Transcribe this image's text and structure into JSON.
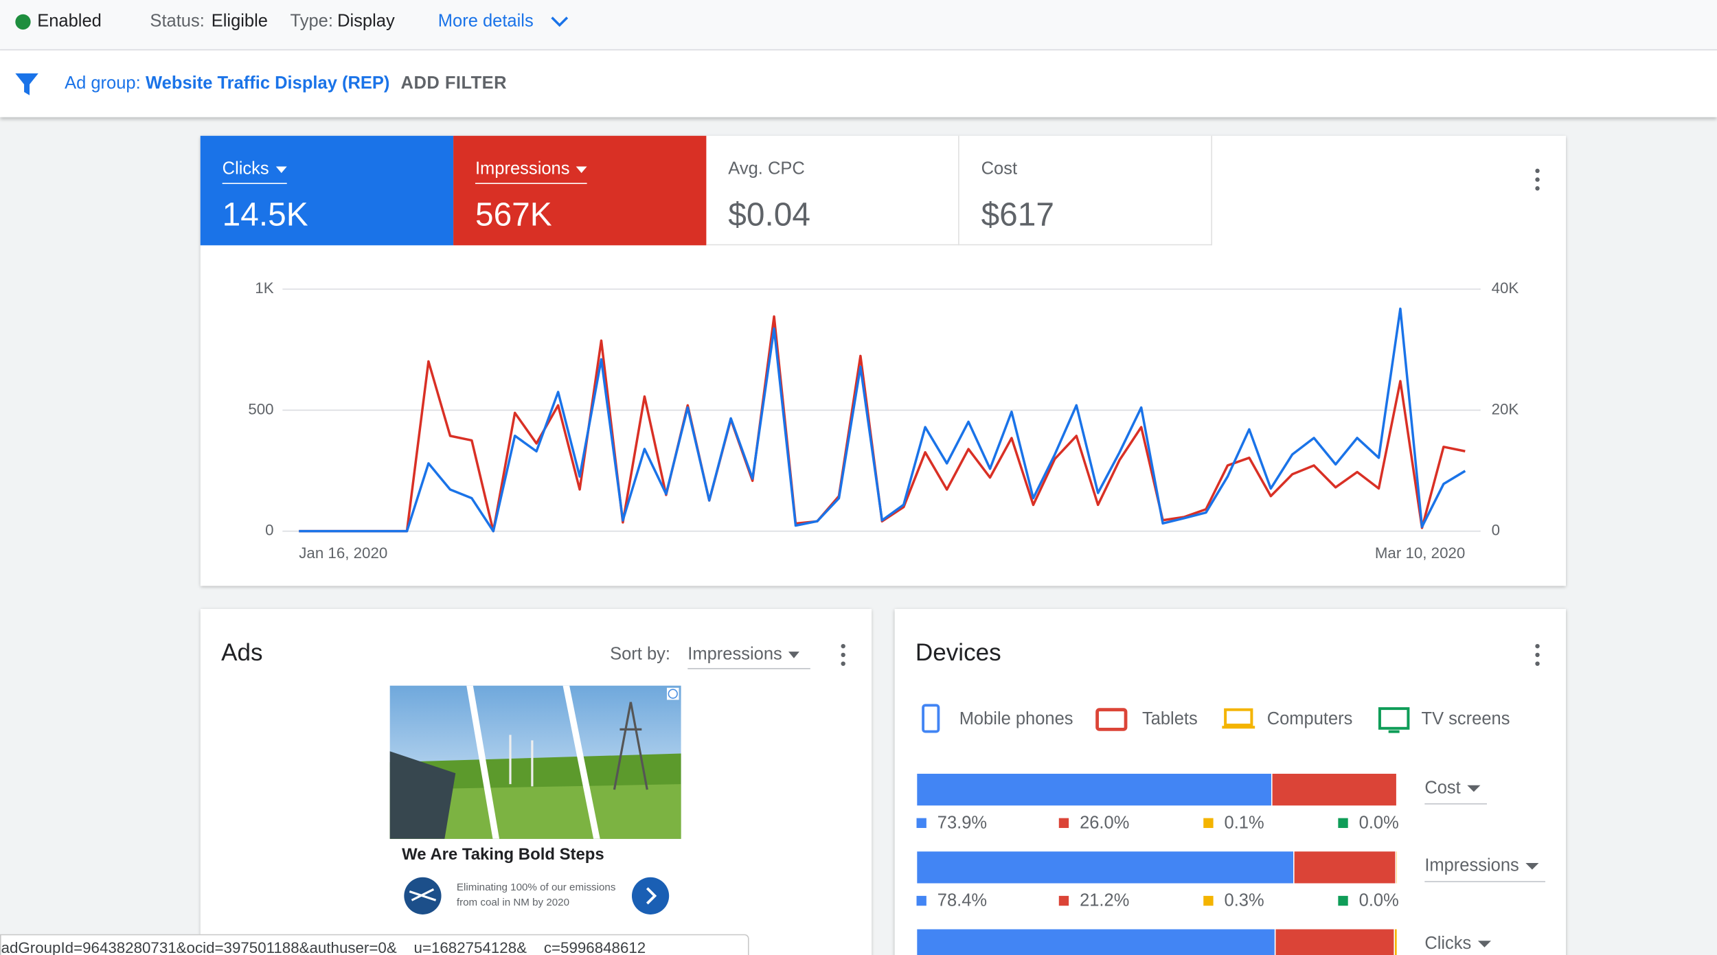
{
  "status_bar": {
    "status": "Enabled",
    "status_label": "Status:",
    "status_value": "Eligible",
    "type_label": "Type:",
    "type_value": "Display",
    "more": "More details"
  },
  "filter_bar": {
    "label": "Ad group:",
    "value": "Website Traffic Display (REP)",
    "add": "ADD FILTER"
  },
  "metrics": [
    {
      "name": "Clicks",
      "value": "14.5K",
      "color": "#1a73e8"
    },
    {
      "name": "Impressions",
      "value": "567K",
      "color": "#d93025"
    },
    {
      "name": "Avg. CPC",
      "value": "$0.04"
    },
    {
      "name": "Cost",
      "value": "$617"
    }
  ],
  "chart_data": {
    "type": "line",
    "categories": [
      "Jan 16, 2020",
      null,
      null,
      null,
      null,
      null,
      null,
      null,
      null,
      null,
      null,
      null,
      null,
      null,
      null,
      null,
      null,
      null,
      null,
      null,
      null,
      null,
      null,
      null,
      null,
      null,
      null,
      null,
      null,
      null,
      null,
      null,
      null,
      null,
      null,
      null,
      null,
      null,
      null,
      null,
      null,
      null,
      null,
      null,
      null,
      null,
      null,
      null,
      null,
      null,
      null,
      null,
      null,
      null,
      "Mar 10, 2020"
    ],
    "series": [
      {
        "name": "Clicks",
        "color": "#1a73e8",
        "values": [
          0,
          0,
          0,
          0,
          0,
          0,
          280,
          172,
          136,
          0,
          394,
          330,
          575,
          226,
          710,
          45,
          340,
          154,
          511,
          127,
          466,
          217,
          837,
          23,
          41,
          136,
          679,
          45,
          109,
          430,
          280,
          452,
          258,
          493,
          136,
          317,
          520,
          158,
          326,
          511,
          32,
          54,
          77,
          226,
          421,
          176,
          317,
          385,
          276,
          385,
          303,
          919,
          18,
          195,
          249
        ]
      },
      {
        "name": "Impressions",
        "color": "#d93025",
        "axis": "y2",
        "values": [
          0,
          0,
          0,
          0,
          0,
          0,
          28050,
          15750,
          15000,
          0,
          19550,
          14500,
          20800,
          6900,
          31500,
          1450,
          22260,
          6000,
          20800,
          5070,
          18460,
          8330,
          35480,
          1270,
          1630,
          5790,
          28960,
          1630,
          3980,
          13030,
          6880,
          13570,
          8870,
          15380,
          4340,
          11950,
          15750,
          4340,
          11760,
          17190,
          1810,
          2350,
          3620,
          10860,
          12130,
          5790,
          9410,
          10860,
          7240,
          9770,
          7060,
          24800,
          540,
          13940,
          13210
        ]
      }
    ],
    "ylim": [
      0,
      1000
    ],
    "yticks": [
      0,
      500,
      {
        "value": 1000,
        "label": "1K"
      }
    ],
    "y2lim": [
      0,
      40000
    ],
    "y2ticks": [
      0,
      {
        "value": 20000,
        "label": "20K"
      },
      {
        "value": 40000,
        "label": "40K"
      }
    ],
    "grid": true
  },
  "ads": {
    "title": "Ads",
    "sort_label": "Sort by:",
    "sort_value": "Impressions",
    "headline": "We Are Taking Bold Steps",
    "description": "Eliminating 100% of our emissions from coal in NM by 2020"
  },
  "devices": {
    "title": "Devices",
    "legend": [
      {
        "name": "Mobile phones",
        "color": "#4285f4"
      },
      {
        "name": "Tablets",
        "color": "#db4437"
      },
      {
        "name": "Computers",
        "color": "#f4b400"
      },
      {
        "name": "TV screens",
        "color": "#0f9d58"
      }
    ],
    "rows": [
      {
        "metric": "Cost",
        "values": [
          73.9,
          26.0,
          0.1,
          0.0
        ],
        "value_labels": [
          "73.9%",
          "26.0%",
          "0.1%",
          "0.0%"
        ]
      },
      {
        "metric": "Impressions",
        "values": [
          78.4,
          21.2,
          0.3,
          0.0
        ],
        "value_labels": [
          "78.4%",
          "21.2%",
          "0.3%",
          "0.0%"
        ]
      },
      {
        "metric": "Clicks",
        "values": [
          74.6,
          24.8,
          0.6,
          0.0
        ]
      }
    ]
  },
  "url": "adGroupId=96438280731&ocid=397501188&authuser=0&__u=1682754128&__c=5996848612"
}
